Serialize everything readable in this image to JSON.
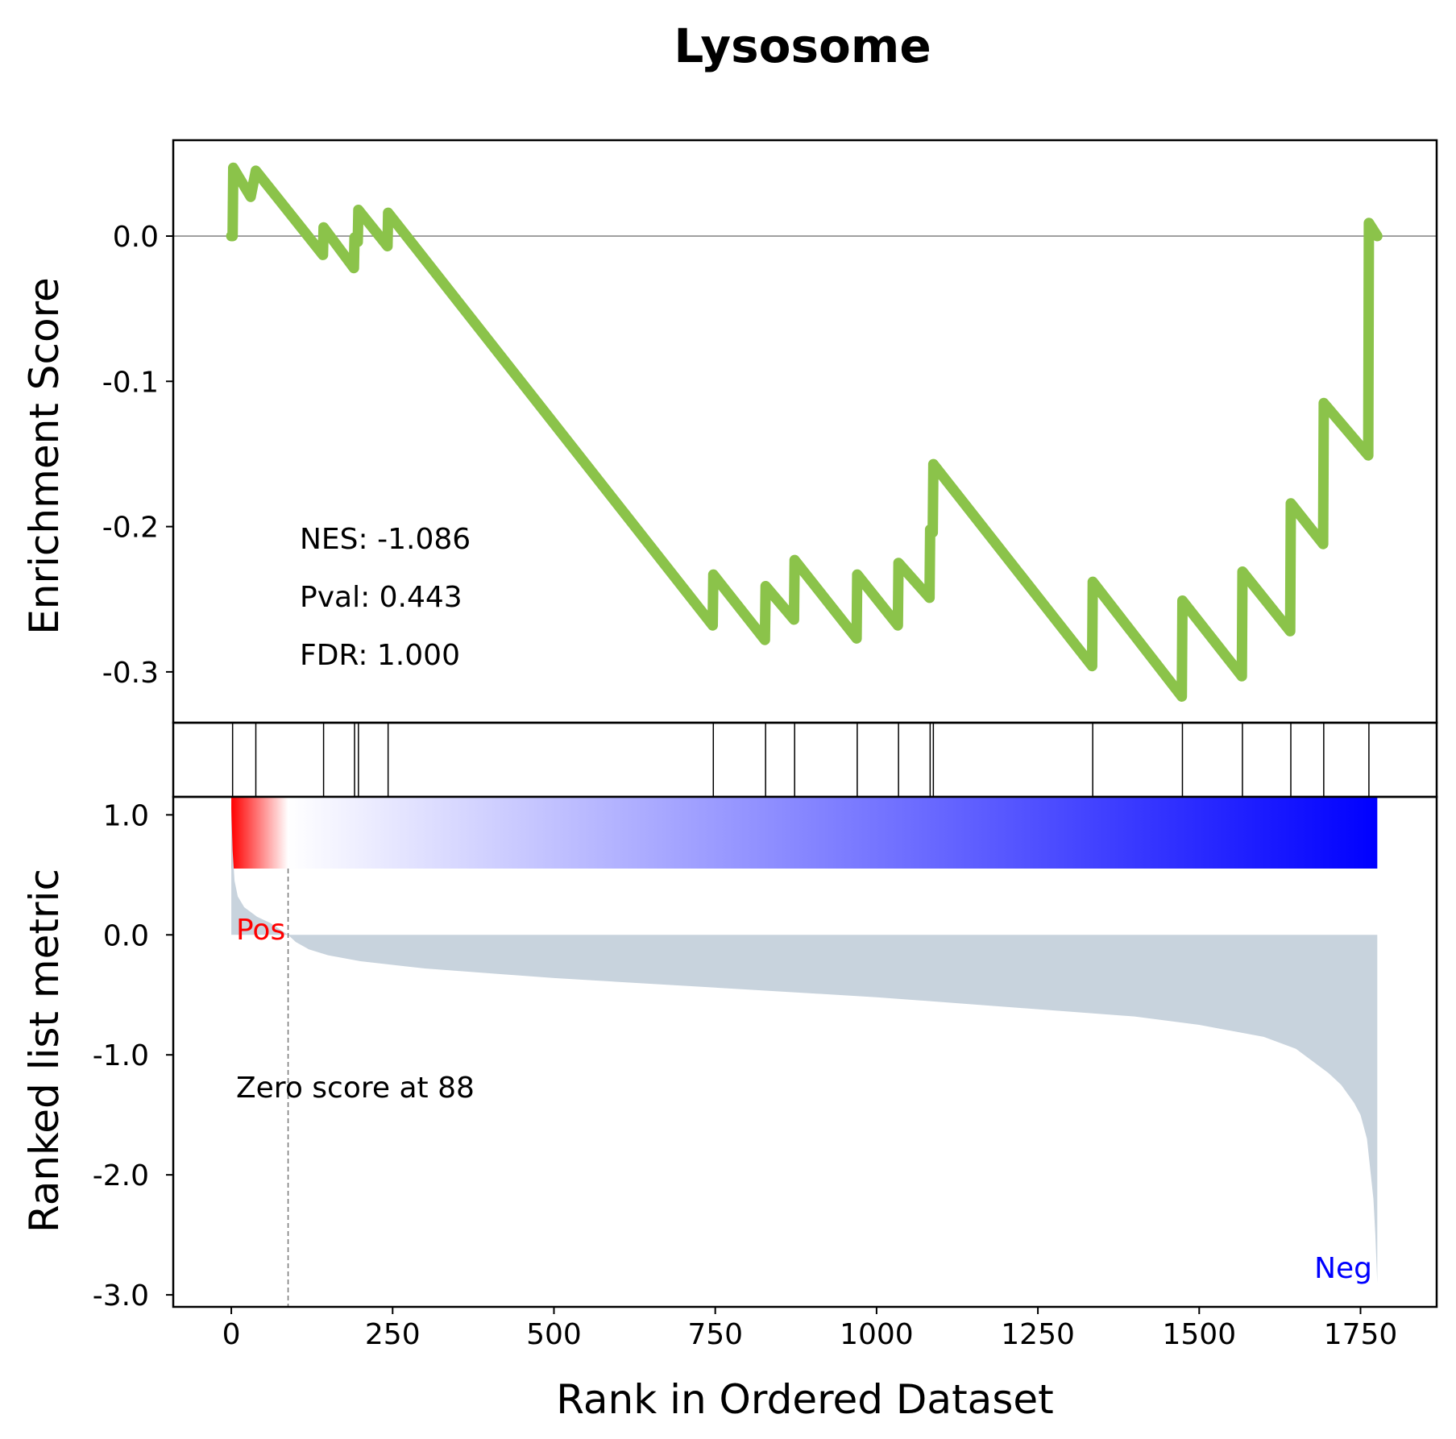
{
  "chart_data": [
    {
      "type": "line",
      "title": "Lysosome",
      "ylabel": "Enrichment Score",
      "xlim": [
        -90,
        1868
      ],
      "ylim": [
        -0.335,
        0.066
      ],
      "yticks": [
        0.0,
        -0.1,
        -0.2,
        -0.3
      ],
      "ytick_labels": [
        "0.0",
        "-0.1",
        "-0.2",
        "-0.3"
      ],
      "line_color": "#8bc34a",
      "zero_line": true,
      "annotations": [
        "NES: -1.086",
        "Pval: 0.443",
        "FDR: 1.000"
      ],
      "series": [
        {
          "x": [
            0,
            2,
            3,
            30,
            38,
            142,
            143,
            190,
            191,
            196,
            197,
            242,
            243,
            746,
            747,
            827,
            828,
            872,
            873,
            969,
            970,
            1033,
            1034,
            1082,
            1083,
            1087,
            1088,
            1334,
            1335,
            1473,
            1474,
            1566,
            1567,
            1641,
            1642,
            1692,
            1693,
            1762,
            1763,
            1776
          ],
          "y": [
            0.0,
            0.0,
            0.047,
            0.027,
            0.045,
            -0.013,
            0.006,
            -0.022,
            -0.001,
            -0.004,
            0.018,
            -0.007,
            0.016,
            -0.268,
            -0.233,
            -0.278,
            -0.241,
            -0.264,
            -0.223,
            -0.277,
            -0.233,
            -0.268,
            -0.225,
            -0.249,
            -0.202,
            -0.204,
            -0.157,
            -0.296,
            -0.238,
            -0.317,
            -0.251,
            -0.303,
            -0.231,
            -0.272,
            -0.184,
            -0.212,
            -0.115,
            -0.151,
            0.009,
            0.0
          ]
        }
      ]
    },
    {
      "type": "hits",
      "hits": [
        2,
        38,
        143,
        191,
        197,
        243,
        747,
        828,
        873,
        970,
        1034,
        1083,
        1088,
        1335,
        1474,
        1567,
        1642,
        1693,
        1763
      ]
    },
    {
      "type": "area",
      "ylabel": "Ranked list metric",
      "xlabel": "Rank in Ordered Dataset",
      "xlim": [
        -90,
        1868
      ],
      "ylim": [
        -3.1,
        1.15
      ],
      "xticks": [
        0,
        250,
        500,
        750,
        1000,
        1250,
        1500,
        1750
      ],
      "xtick_labels": [
        "0",
        "250",
        "500",
        "750",
        "1000",
        "1250",
        "1500",
        "1750"
      ],
      "yticks": [
        1.0,
        0.0,
        -1.0,
        -2.0,
        -3.0
      ],
      "ytick_labels": [
        "1.0",
        "0.0",
        "-1.0",
        "-2.0",
        "-3.0"
      ],
      "fill_color": "#c8d3dd",
      "heatmap_range": [
        0,
        1776
      ],
      "heatmap_colors": [
        "#ff0000",
        "#ffffff",
        "#0000ff"
      ],
      "zero_score_rank": 88,
      "labels": {
        "pos": "Pos",
        "neg": "Neg",
        "zero_score": "Zero score at 88"
      },
      "label_colors": {
        "pos": "#ff0000",
        "neg": "#0000ff"
      },
      "series": [
        {
          "x": [
            0,
            2,
            5,
            10,
            20,
            40,
            60,
            88,
            100,
            120,
            150,
            200,
            300,
            500,
            750,
            1000,
            1250,
            1400,
            1500,
            1600,
            1650,
            1700,
            1720,
            1740,
            1750,
            1760,
            1765,
            1770,
            1773,
            1776
          ],
          "y": [
            1.05,
            0.7,
            0.45,
            0.32,
            0.23,
            0.15,
            0.1,
            0.0,
            -0.06,
            -0.12,
            -0.17,
            -0.22,
            -0.28,
            -0.36,
            -0.44,
            -0.52,
            -0.62,
            -0.68,
            -0.75,
            -0.85,
            -0.95,
            -1.15,
            -1.25,
            -1.4,
            -1.5,
            -1.7,
            -1.95,
            -2.2,
            -2.5,
            -2.9
          ]
        }
      ]
    }
  ]
}
